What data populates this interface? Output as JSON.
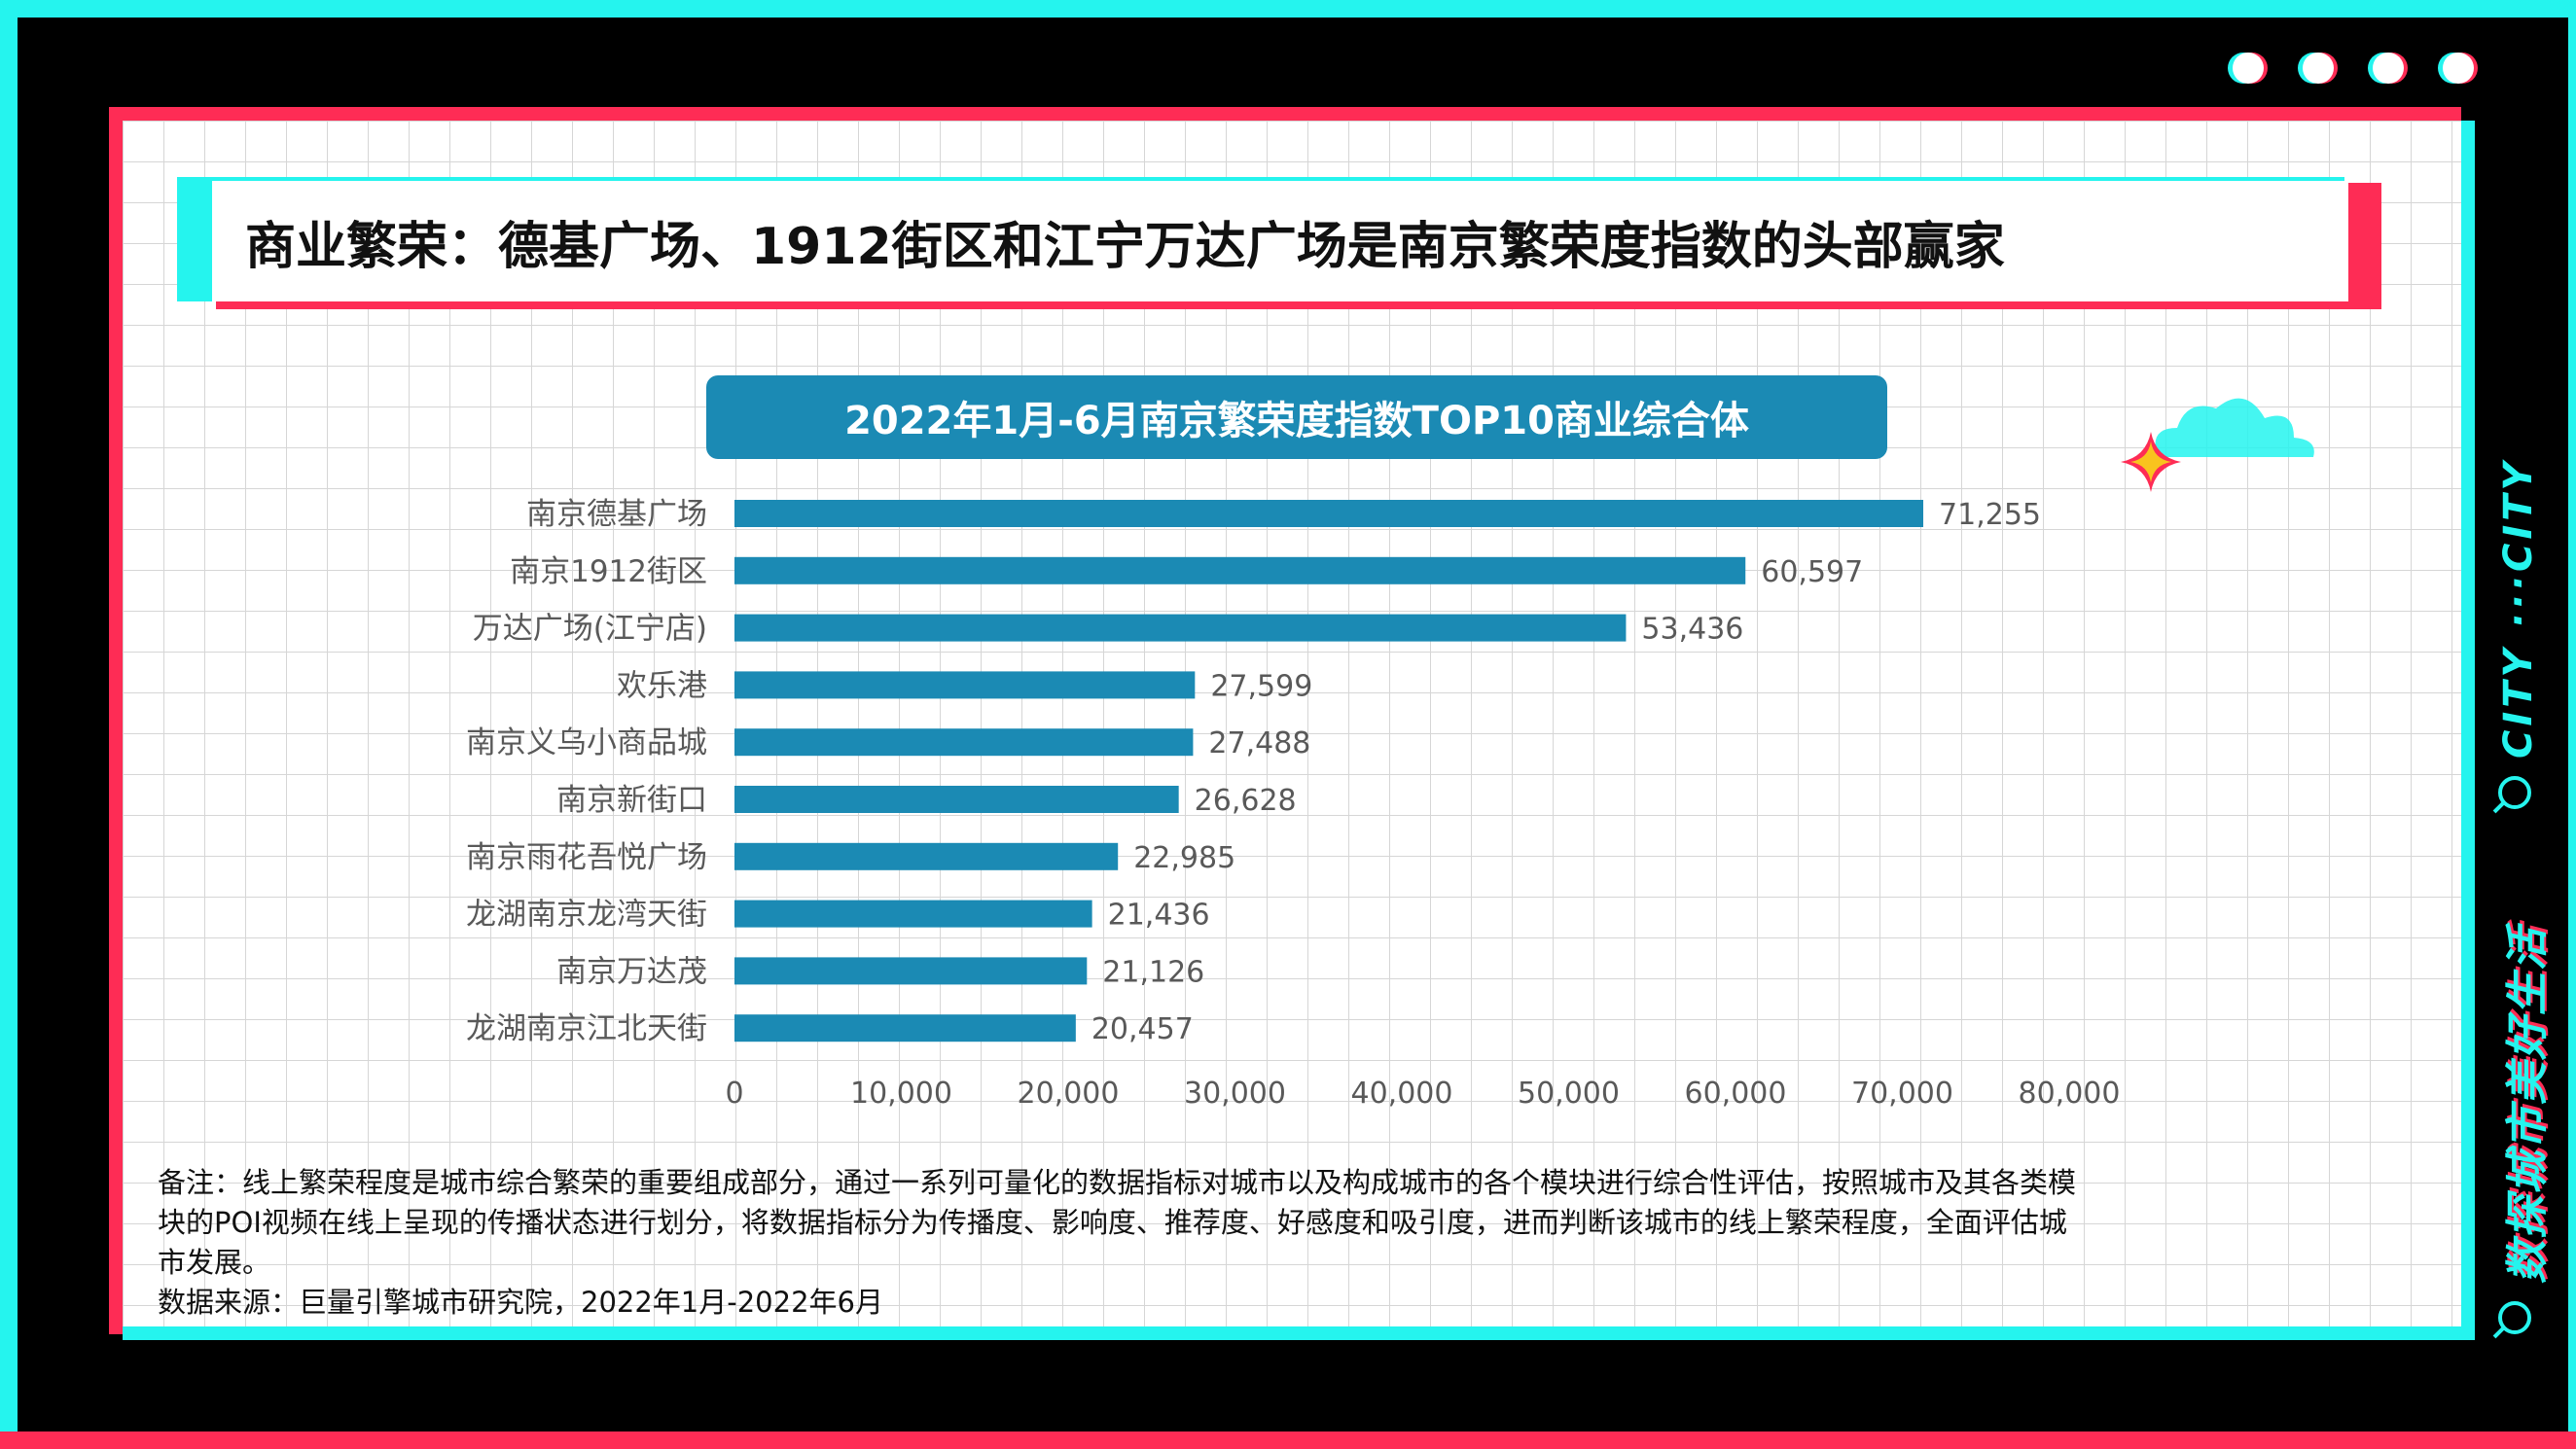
{
  "headline": "商业繁荣：德基广场、1912街区和江宁万达广场是南京繁荣度指数的头部赢家",
  "side": {
    "slogan": "数探城市美好生活",
    "city": "CITY ···CITY"
  },
  "colors": {
    "cyan": "#25F4EE",
    "red": "#FE2C55",
    "bar": "#1B8AB4"
  },
  "chart_data": {
    "type": "bar",
    "orientation": "horizontal",
    "title": "2022年1月-6月南京繁荣度指数TOP10商业综合体",
    "categories": [
      "南京德基广场",
      "南京1912街区",
      "万达广场(江宁店)",
      "欢乐港",
      "南京义乌小商品城",
      "南京新街口",
      "南京雨花吾悦广场",
      "龙湖南京龙湾天街",
      "南京万达茂",
      "龙湖南京江北天街"
    ],
    "values": [
      71255,
      60597,
      53436,
      27599,
      27488,
      26628,
      22985,
      21436,
      21126,
      20457
    ],
    "value_labels": [
      "71,255",
      "60,597",
      "53,436",
      "27,599",
      "27,488",
      "26,628",
      "22,985",
      "21,436",
      "21,126",
      "20,457"
    ],
    "xlim": [
      0,
      80000
    ],
    "xticks": [
      "0",
      "10,000",
      "20,000",
      "30,000",
      "40,000",
      "50,000",
      "60,000",
      "70,000",
      "80,000"
    ],
    "xlabel": "",
    "ylabel": "",
    "grid": false,
    "legend": "none"
  },
  "notes": {
    "line1": "备注：线上繁荣程度是城市综合繁荣的重要组成部分，通过一系列可量化的数据指标对城市以及构成城市的各个模块进行综合性评估，按照城市及其各类模",
    "line2": "块的POI视频在线上呈现的传播状态进行划分，将数据指标分为传播度、影响度、推荐度、好感度和吸引度，进而判断该城市的线上繁荣程度，全面评估城",
    "line3": "市发展。",
    "source": "数据来源：巨量引擎城市研究院，2022年1月-2022年6月"
  }
}
